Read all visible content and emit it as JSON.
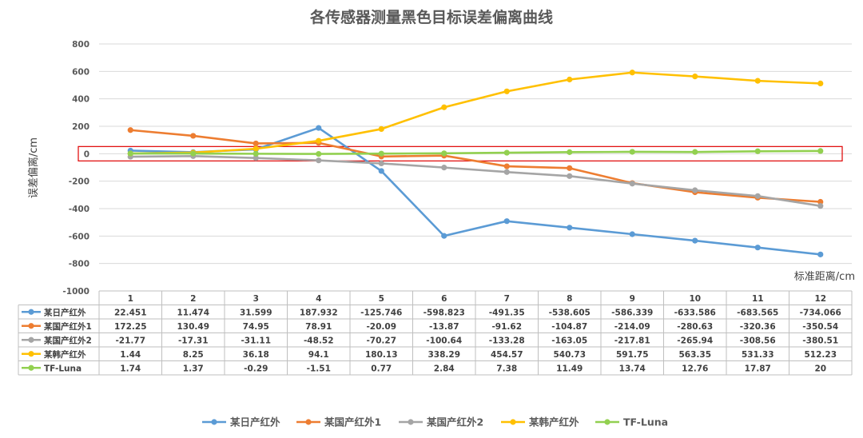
{
  "chart_data": {
    "type": "line",
    "title": "各传感器测量黑色目标误差偏离曲线",
    "xlabel": "标准距离/cm",
    "ylabel": "误差偏离/cm",
    "ylim": [
      -1000,
      800
    ],
    "yticks": [
      800,
      600,
      400,
      200,
      0,
      -200,
      -400,
      -600,
      -800,
      -1000
    ],
    "categories": [
      "1",
      "2",
      "3",
      "4",
      "5",
      "6",
      "7",
      "8",
      "9",
      "10",
      "11",
      "12"
    ],
    "grid": true,
    "legend_position": "bottom",
    "highlight_box_note": "red rectangle around y=0 line",
    "series": [
      {
        "name": "某日产红外",
        "color": "#5B9BD5",
        "values": [
          22.451,
          11.474,
          31.599,
          187.932,
          -125.746,
          -598.823,
          -491.35,
          -538.605,
          -586.339,
          -633.586,
          -683.565,
          -734.066
        ],
        "labels": [
          "22.451",
          "11.474",
          "31.599",
          "187.932",
          "-125.746",
          "-598.823",
          "-491.35",
          "-538.605",
          "-586.339",
          "-633.586",
          "-683.565",
          "-734.066"
        ]
      },
      {
        "name": "某国产红外1",
        "color": "#ED7D31",
        "values": [
          172.25,
          130.49,
          74.95,
          78.91,
          -20.09,
          -13.87,
          -91.62,
          -104.87,
          -214.09,
          -280.63,
          -320.36,
          -350.54
        ],
        "labels": [
          "172.25",
          "130.49",
          "74.95",
          "78.91",
          "-20.09",
          "-13.87",
          "-91.62",
          "-104.87",
          "-214.09",
          "-280.63",
          "-320.36",
          "-350.54"
        ]
      },
      {
        "name": "某国产红外2",
        "color": "#A5A5A5",
        "values": [
          -21.77,
          -17.31,
          -31.11,
          -48.52,
          -70.27,
          -100.64,
          -133.28,
          -163.05,
          -217.81,
          -265.94,
          -308.56,
          -380.51
        ],
        "labels": [
          "-21.77",
          "-17.31",
          "-31.11",
          "-48.52",
          "-70.27",
          "-100.64",
          "-133.28",
          "-163.05",
          "-217.81",
          "-265.94",
          "-308.56",
          "-380.51"
        ]
      },
      {
        "name": "某韩产红外",
        "color": "#FFC000",
        "values": [
          1.44,
          8.25,
          36.18,
          94.1,
          180.13,
          338.29,
          454.57,
          540.73,
          591.75,
          563.35,
          531.33,
          512.23
        ],
        "labels": [
          "1.44",
          "8.25",
          "36.18",
          "94.1",
          "180.13",
          "338.29",
          "454.57",
          "540.73",
          "591.75",
          "563.35",
          "531.33",
          "512.23"
        ]
      },
      {
        "name": "TF-Luna",
        "color": "#92D050",
        "values": [
          1.74,
          1.37,
          -0.29,
          -1.51,
          0.77,
          2.84,
          7.38,
          11.49,
          13.74,
          12.76,
          17.87,
          20
        ],
        "labels": [
          "1.74",
          "1.37",
          "-0.29",
          "-1.51",
          "0.77",
          "2.84",
          "7.38",
          "11.49",
          "13.74",
          "12.76",
          "17.87",
          "20"
        ]
      }
    ]
  }
}
